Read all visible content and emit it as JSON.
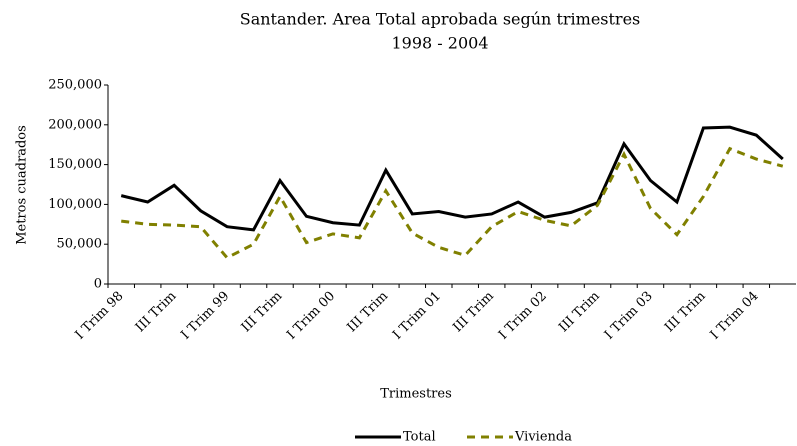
{
  "chart_data": {
    "type": "line",
    "title": "Santander. Area Total aprobada según trimestres",
    "subtitle": "1998 - 2004",
    "x_label": "Trimestres",
    "y_label": "Metros cuadrados",
    "categories": [
      "I Trim 98",
      null,
      "III Trim",
      null,
      "I Trim 99",
      null,
      "III Trim",
      null,
      "I Trim 00",
      null,
      "III Trim",
      null,
      "I Trim 01",
      null,
      "III Trim",
      null,
      "I Trim 02",
      null,
      "III Trim",
      null,
      "I Trim 03",
      null,
      "III Trim",
      null,
      "I Trim 04",
      null
    ],
    "series": [
      {
        "name": "Total",
        "color": "#000000",
        "dashed": false,
        "values": [
          111000,
          103000,
          124000,
          92000,
          72000,
          68000,
          130000,
          85000,
          77000,
          74000,
          143000,
          88000,
          91000,
          84000,
          88000,
          103000,
          84000,
          90000,
          102000,
          176000,
          130000,
          103000,
          196000,
          197000,
          187000,
          157000
        ]
      },
      {
        "name": "Vivienda",
        "color": "#808000",
        "dashed": true,
        "values": [
          79000,
          75000,
          74000,
          72000,
          33000,
          50000,
          110000,
          52000,
          63000,
          58000,
          117000,
          64000,
          46000,
          36000,
          72000,
          91000,
          80000,
          73000,
          99000,
          163000,
          95000,
          62000,
          110000,
          170000,
          157000,
          148000
        ]
      }
    ],
    "ylim": [
      0,
      250000
    ],
    "yticks": [
      0,
      {
        "value": 50000,
        "label": "50,000"
      },
      {
        "value": 100000,
        "label": "100,000"
      },
      {
        "value": 150000,
        "label": "150,000"
      },
      {
        "value": 200000,
        "label": "200,000"
      },
      {
        "value": 250000,
        "label": "250,000"
      }
    ],
    "grid": false,
    "legend": "bottom"
  }
}
